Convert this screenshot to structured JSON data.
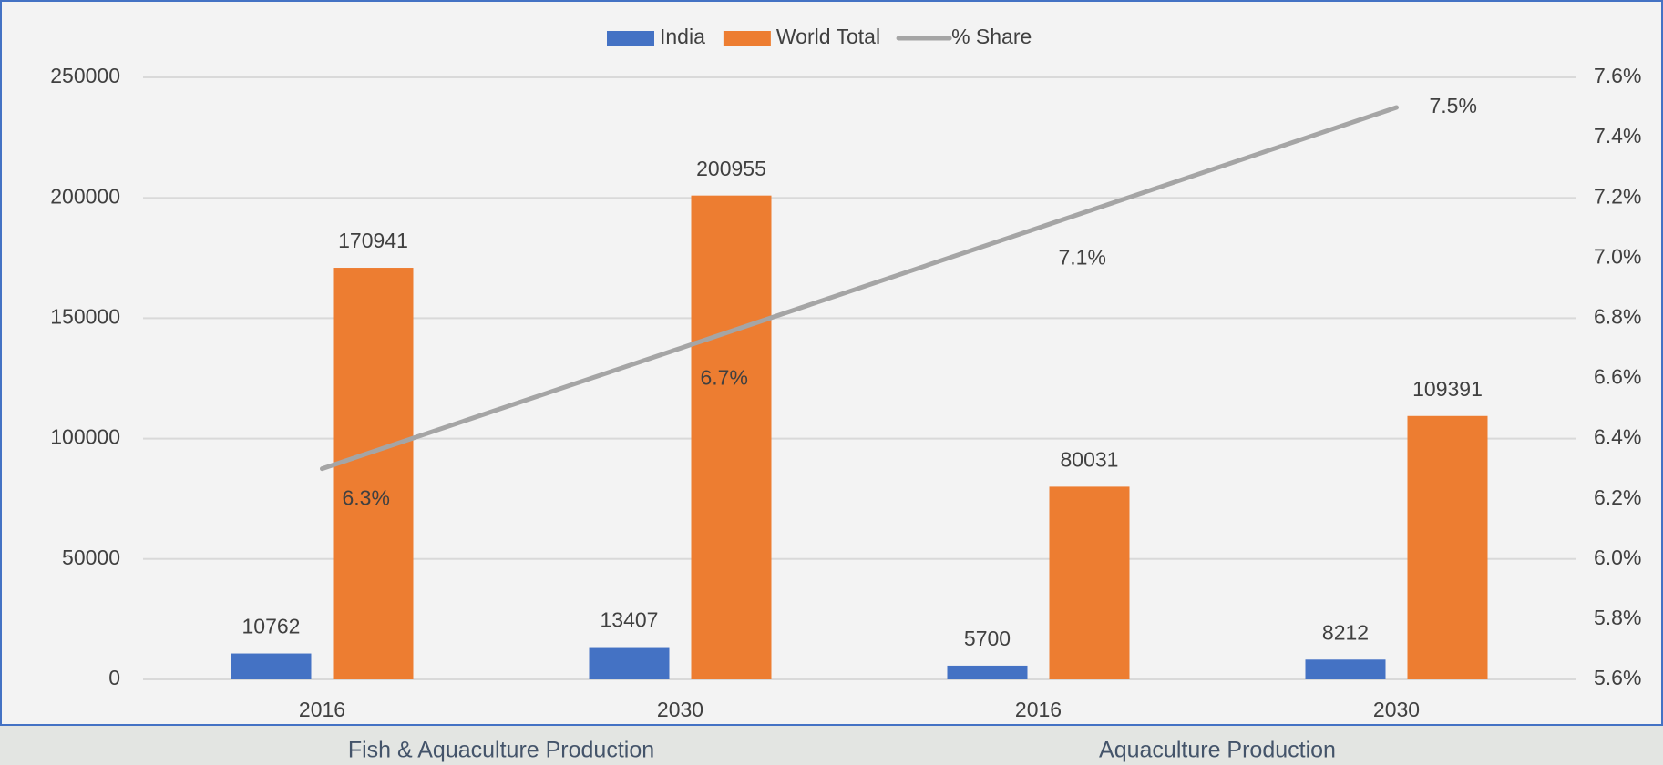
{
  "chart_data": {
    "type": "bar_line",
    "categories": [
      "2016",
      "2030",
      "2016",
      "2030"
    ],
    "group_labels": [
      "Fish & Aquaculture Production",
      "Aquaculture Production"
    ],
    "series": [
      {
        "name": "India",
        "type": "bar",
        "color": "#4472c4",
        "values": [
          10762,
          13407,
          5700,
          8212
        ]
      },
      {
        "name": "World Total",
        "type": "bar",
        "color": "#ed7d31",
        "values": [
          170941,
          200955,
          80031,
          109391
        ]
      },
      {
        "name": "% Share",
        "type": "line",
        "axis": "y2",
        "color": "#a5a5a5",
        "values": [
          6.3,
          6.7,
          7.1,
          7.5
        ],
        "value_labels": [
          "6.3%",
          "6.7%",
          "7.1%",
          "7.5%"
        ]
      }
    ],
    "ylim": [
      0,
      250000
    ],
    "yticks": [
      0,
      50000,
      100000,
      150000,
      200000,
      250000
    ],
    "y2lim": [
      5.6,
      7.6
    ],
    "y2ticks": [
      {
        "value": 5.6,
        "label": "5.6%"
      },
      {
        "value": 5.8,
        "label": "5.8%"
      },
      {
        "value": 6.0,
        "label": "6.0%"
      },
      {
        "value": 6.2,
        "label": "6.2%"
      },
      {
        "value": 6.4,
        "label": "6.4%"
      },
      {
        "value": 6.6,
        "label": "6.6%"
      },
      {
        "value": 6.8,
        "label": "6.8%"
      },
      {
        "value": 7.0,
        "label": "7.0%"
      },
      {
        "value": 7.2,
        "label": "7.2%"
      },
      {
        "value": 7.4,
        "label": "7.4%"
      },
      {
        "value": 7.6,
        "label": "7.6%"
      }
    ],
    "grid": true,
    "legend": "top"
  }
}
